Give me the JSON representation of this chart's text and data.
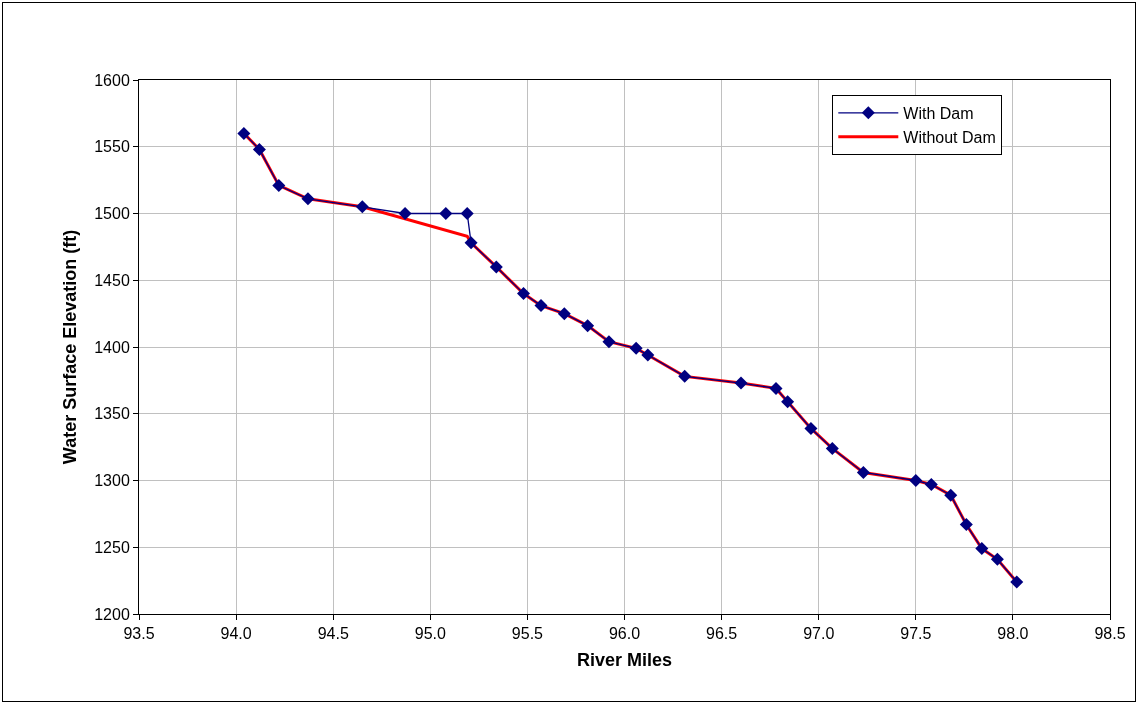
{
  "chart_data": {
    "type": "line",
    "xlabel": "River Miles",
    "ylabel": "Water Surface Elevation (ft)",
    "xlim": [
      93.5,
      98.5
    ],
    "xticks": [
      {
        "value": 93.5,
        "label": "93.5"
      },
      {
        "value": 94,
        "label": "94.0"
      },
      {
        "value": 94.5,
        "label": "94.5"
      },
      {
        "value": 95,
        "label": "95.0"
      },
      {
        "value": 95.5,
        "label": "95.5"
      },
      {
        "value": 96,
        "label": "96.0"
      },
      {
        "value": 96.5,
        "label": "96.5"
      },
      {
        "value": 97,
        "label": "97.0"
      },
      {
        "value": 97.5,
        "label": "97.5"
      },
      {
        "value": 98,
        "label": "98.0"
      },
      {
        "value": 98.5,
        "label": "98.5"
      }
    ],
    "ylim": [
      1200,
      1600
    ],
    "yticks": [
      1200,
      1250,
      1300,
      1350,
      1400,
      1450,
      1500,
      1550,
      1600
    ],
    "grid": true,
    "legend": "top right",
    "line_style": "solid",
    "series": [
      {
        "name": "With Dam",
        "color": "#000080",
        "marker": "diamond",
        "x": [
          94.04,
          94.12,
          94.22,
          94.37,
          94.65,
          94.87,
          95.08,
          95.19,
          95.21,
          95.34,
          95.48,
          95.57,
          95.69,
          95.81,
          95.92,
          96.06,
          96.12,
          96.31,
          96.6,
          96.78,
          96.84,
          96.96,
          97.07,
          97.23,
          97.5,
          97.58,
          97.68,
          97.76,
          97.84,
          97.92,
          98.02
        ],
        "values": [
          1560,
          1548,
          1521,
          1511,
          1505,
          1500,
          1500,
          1500,
          1478,
          1460,
          1440,
          1431,
          1425,
          1416,
          1404,
          1399,
          1394,
          1378,
          1373,
          1369,
          1359,
          1339,
          1324,
          1306,
          1300,
          1297,
          1289,
          1267,
          1249,
          1241,
          1224
        ]
      },
      {
        "name": "Without Dam",
        "color": "#ff0000",
        "marker": "none",
        "x": [
          94.04,
          94.12,
          94.22,
          94.37,
          94.65,
          95.19,
          95.21,
          95.34,
          95.48,
          95.57,
          95.69,
          95.81,
          95.92,
          96.06,
          96.12,
          96.31,
          96.6,
          96.78,
          96.84,
          96.96,
          97.07,
          97.23,
          97.5,
          97.58,
          97.68,
          97.76,
          97.84,
          97.92,
          98.02
        ],
        "values": [
          1560,
          1548,
          1521,
          1511,
          1505,
          1483,
          1478,
          1460,
          1440,
          1431,
          1425,
          1416,
          1404,
          1399,
          1394,
          1378,
          1373,
          1369,
          1359,
          1339,
          1324,
          1306,
          1300,
          1297,
          1289,
          1267,
          1249,
          1241,
          1224
        ]
      }
    ]
  }
}
